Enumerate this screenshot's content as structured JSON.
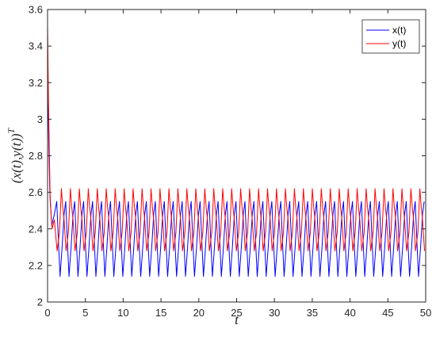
{
  "chart_data": {
    "type": "line",
    "title": "",
    "xlabel": "t",
    "ylabel": "(x(t),y(t))",
    "ylabel_superscript": "T",
    "xlim": [
      0,
      50
    ],
    "ylim": [
      2,
      3.6
    ],
    "x_ticks": [
      "0",
      "5",
      "10",
      "15",
      "20",
      "25",
      "30",
      "35",
      "40",
      "45",
      "50"
    ],
    "y_ticks": [
      "2",
      "2.2",
      "2.4",
      "2.6",
      "2.8",
      "3",
      "3.2",
      "3.4",
      "3.6"
    ],
    "grid": false,
    "legend_position": "top-right",
    "series": [
      {
        "name": "x(t)",
        "color": "#0000ff",
        "initial": [
          [
            0,
            3.3
          ],
          [
            0.15,
            2.9
          ],
          [
            0.3,
            2.6
          ],
          [
            0.55,
            2.42
          ],
          [
            0.85,
            2.47
          ]
        ],
        "period": 1.185,
        "phase_start": 1.0,
        "shape": [
          [
            0,
            2.48
          ],
          [
            0.18,
            2.55
          ],
          [
            0.38,
            2.32
          ],
          [
            0.55,
            2.14
          ],
          [
            0.78,
            2.3
          ],
          [
            1.0,
            2.48
          ]
        ],
        "steady_range": [
          2.13,
          2.56
        ]
      },
      {
        "name": "y(t)",
        "color": "#ff0000",
        "initial": [
          [
            0,
            3.52
          ],
          [
            0.12,
            3.1
          ],
          [
            0.35,
            2.55
          ],
          [
            0.6,
            2.4
          ],
          [
            0.9,
            2.45
          ]
        ],
        "period": 1.185,
        "phase_start": 1.0,
        "shape": [
          [
            0,
            2.45
          ],
          [
            0.22,
            2.28
          ],
          [
            0.48,
            2.38
          ],
          [
            0.7,
            2.62
          ],
          [
            0.85,
            2.52
          ],
          [
            1.0,
            2.45
          ]
        ],
        "steady_range": [
          2.17,
          2.62
        ]
      }
    ]
  }
}
